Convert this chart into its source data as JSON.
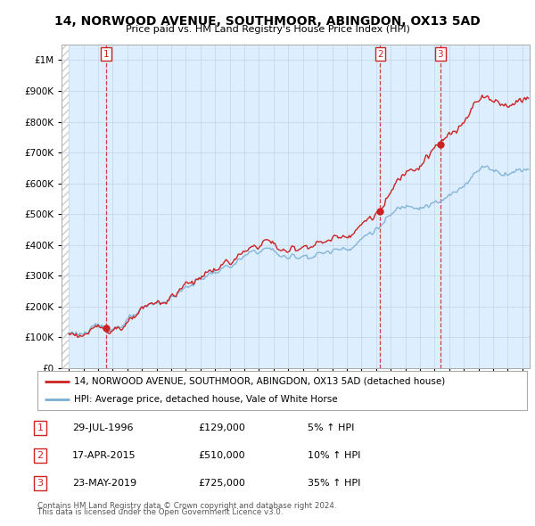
{
  "title": "14, NORWOOD AVENUE, SOUTHMOOR, ABINGDON, OX13 5AD",
  "subtitle": "Price paid vs. HM Land Registry's House Price Index (HPI)",
  "legend_line1": "14, NORWOOD AVENUE, SOUTHMOOR, ABINGDON, OX13 5AD (detached house)",
  "legend_line2": "HPI: Average price, detached house, Vale of White Horse",
  "footer1": "Contains HM Land Registry data © Crown copyright and database right 2024.",
  "footer2": "This data is licensed under the Open Government Licence v3.0.",
  "transactions": [
    {
      "num": 1,
      "date": "29-JUL-1996",
      "price": "£129,000",
      "hpi": "5% ↑ HPI"
    },
    {
      "num": 2,
      "date": "17-APR-2015",
      "price": "£510,000",
      "hpi": "10% ↑ HPI"
    },
    {
      "num": 3,
      "date": "23-MAY-2019",
      "price": "£725,000",
      "hpi": "35% ↑ HPI"
    }
  ],
  "sale_dates": [
    1996.57,
    2015.29,
    2019.38
  ],
  "sale_prices": [
    129000,
    510000,
    725000
  ],
  "hpi_color": "#7bafd4",
  "price_color": "#cc2222",
  "vline_color": "#cc2222",
  "grid_color": "#c8d8e8",
  "bg_color": "#ddeeff",
  "hatch_color": "#cccccc",
  "ylim": [
    0,
    1050000
  ],
  "xlim": [
    1993.5,
    2025.5
  ],
  "data_start": 1994.0,
  "yticks": [
    0,
    100000,
    200000,
    300000,
    400000,
    500000,
    600000,
    700000,
    800000,
    900000,
    1000000
  ]
}
